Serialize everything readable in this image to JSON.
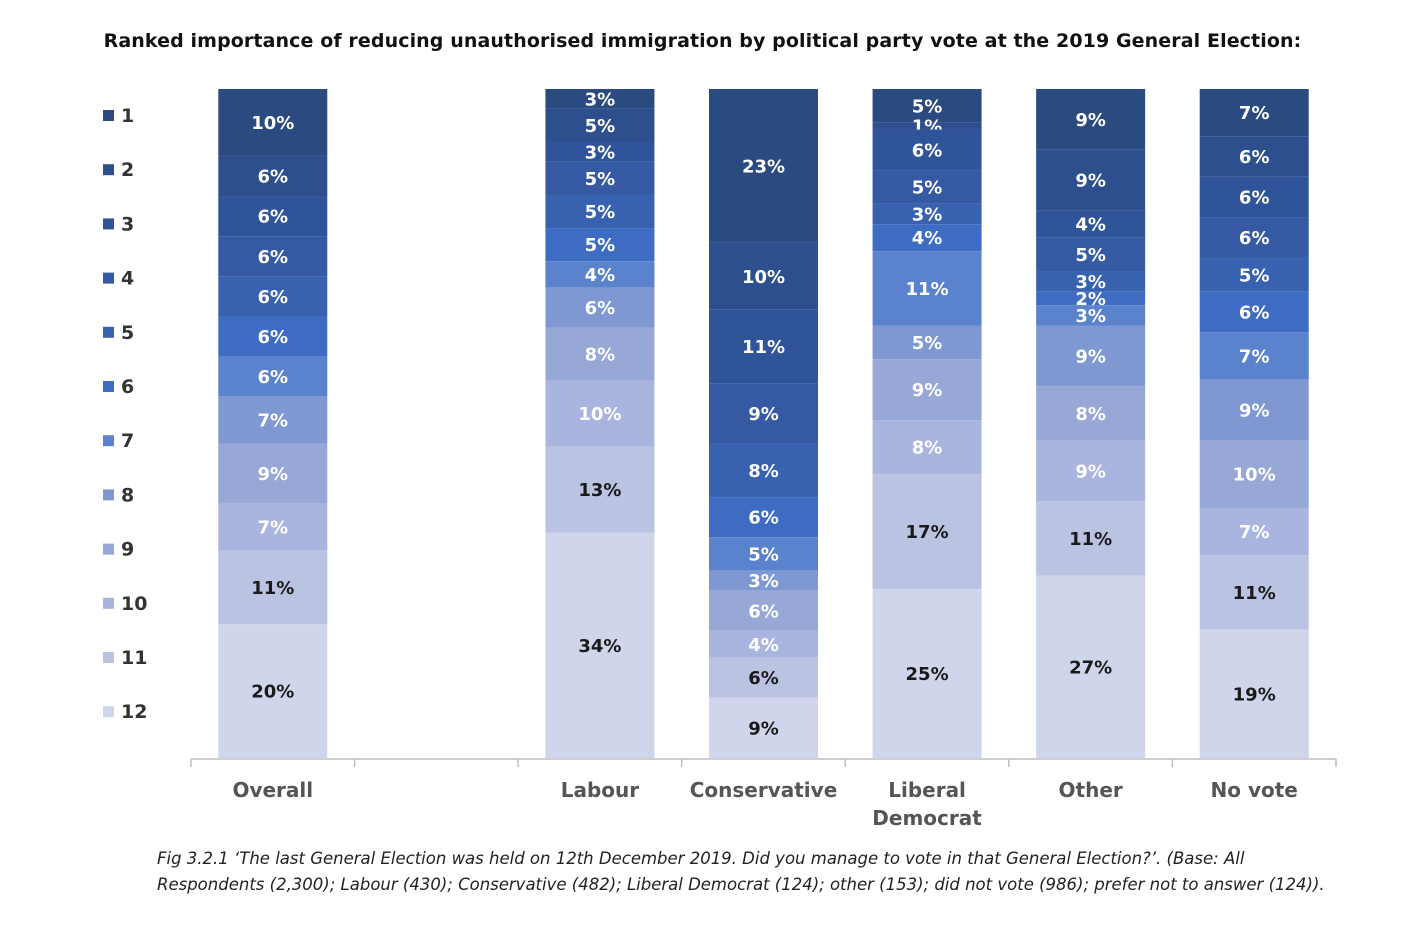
{
  "chart_data": {
    "type": "bar",
    "stacked": true,
    "title": "Ranked importance of reducing unauthorised immigration by political party vote at the 2019 General Election:",
    "categories": [
      "Overall",
      "",
      "Labour",
      "Conservative",
      "Liberal Democrat",
      "Other",
      "No vote"
    ],
    "ranks": [
      "1",
      "2",
      "3",
      "4",
      "5",
      "6",
      "7",
      "8",
      "9",
      "10",
      "11",
      "12"
    ],
    "colors": [
      "#2b4a80",
      "#2e4f8e",
      "#305499",
      "#3559a3",
      "#3862b0",
      "#3e6cc2",
      "#5a82cd",
      "#7f98d2",
      "#97a7d6",
      "#a9b5de",
      "#bac3e2",
      "#cfd5ea"
    ],
    "series": [
      {
        "name": "1",
        "values": [
          10,
          null,
          3,
          23,
          5,
          9,
          7
        ]
      },
      {
        "name": "2",
        "values": [
          6,
          null,
          5,
          10,
          1,
          9,
          6
        ]
      },
      {
        "name": "3",
        "values": [
          6,
          null,
          3,
          11,
          6,
          4,
          6
        ]
      },
      {
        "name": "4",
        "values": [
          6,
          null,
          5,
          9,
          5,
          5,
          6
        ]
      },
      {
        "name": "5",
        "values": [
          6,
          null,
          5,
          8,
          3,
          3,
          5
        ]
      },
      {
        "name": "6",
        "values": [
          6,
          null,
          5,
          6,
          4,
          2,
          6
        ]
      },
      {
        "name": "7",
        "values": [
          6,
          null,
          4,
          5,
          11,
          3,
          7
        ]
      },
      {
        "name": "8",
        "values": [
          7,
          null,
          6,
          3,
          5,
          9,
          9
        ]
      },
      {
        "name": "9",
        "values": [
          9,
          null,
          8,
          6,
          9,
          8,
          10
        ]
      },
      {
        "name": "10",
        "values": [
          7,
          null,
          10,
          4,
          8,
          9,
          7
        ]
      },
      {
        "name": "11",
        "values": [
          11,
          null,
          13,
          6,
          17,
          11,
          11
        ]
      },
      {
        "name": "12",
        "values": [
          20,
          null,
          34,
          9,
          25,
          27,
          19
        ]
      }
    ],
    "value_suffix": "%",
    "legend_position": "left",
    "grid": false
  },
  "caption": {
    "fig_label": "Fig 3.2.1",
    "text": " ‘The last General Election was held on 12th December 2019. Did you manage to vote in that General Election?’. (Base: All Respondents (2,300); Labour (430); Conservative (482); Liberal Democrat (124); other (153); did not vote (986); prefer not to answer (124))."
  }
}
